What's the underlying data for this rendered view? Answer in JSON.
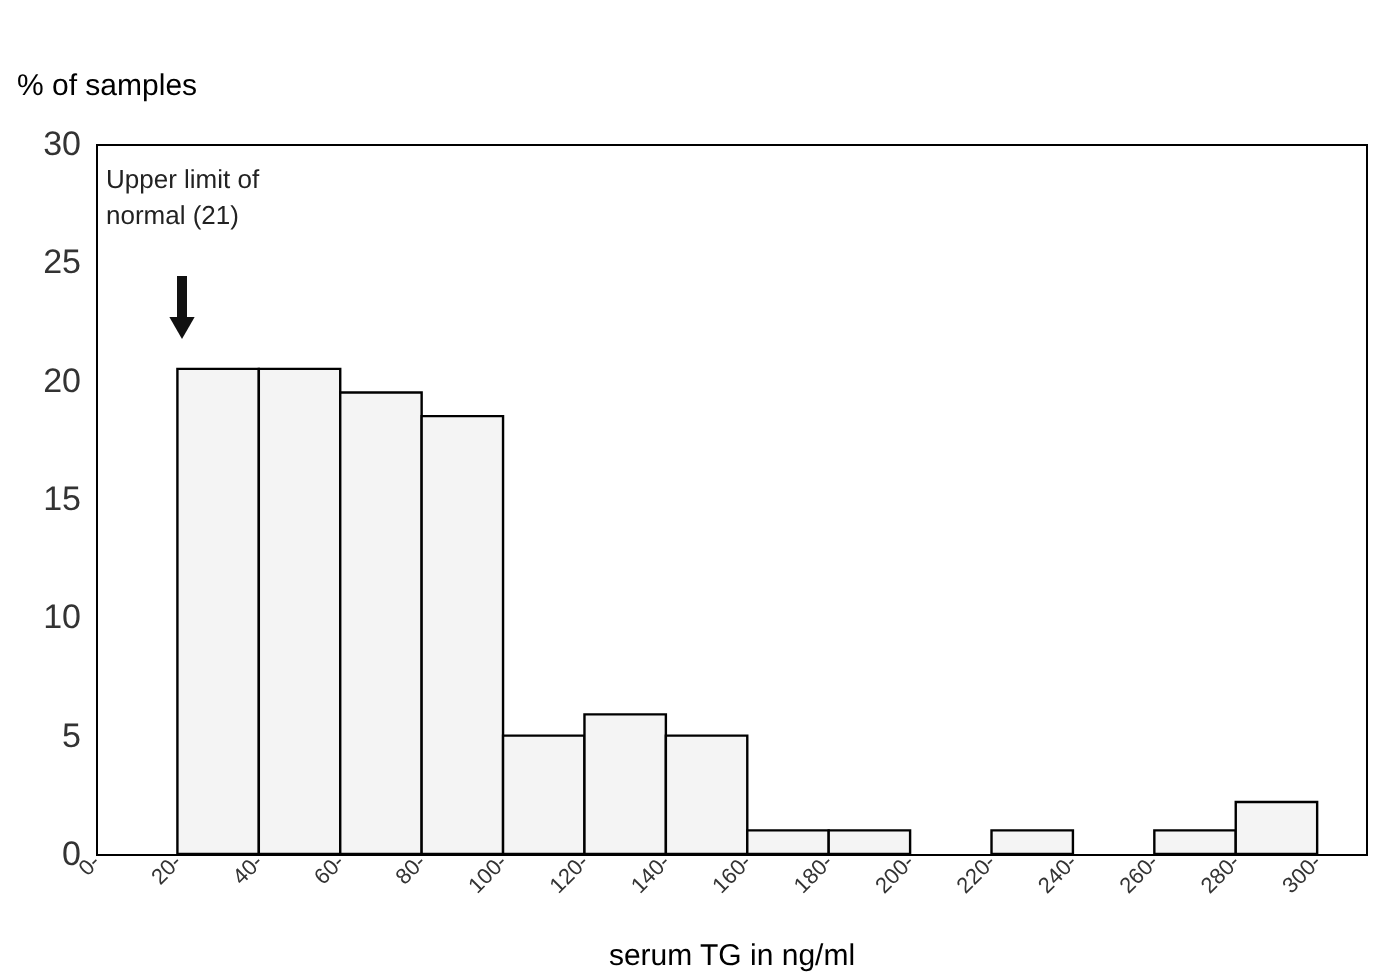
{
  "chart_data": {
    "type": "histogram",
    "xlabel": "serum TG in ng/ml",
    "ylabel": "% of samples",
    "bins": [
      0,
      20,
      40,
      60,
      80,
      100,
      120,
      140,
      160,
      180,
      200,
      220,
      240,
      260,
      280,
      300
    ],
    "values": [
      0,
      20.5,
      20.5,
      19.5,
      18.5,
      5,
      5.9,
      5,
      1,
      1,
      0,
      1,
      0,
      1,
      2.2
    ],
    "color": "#f4f4f4",
    "xlim": [
      0,
      312
    ],
    "xticks": [
      {
        "value": 0,
        "label": "0-"
      },
      {
        "value": 20,
        "label": "20-"
      },
      {
        "value": 40,
        "label": "40-"
      },
      {
        "value": 60,
        "label": "60-"
      },
      {
        "value": 80,
        "label": "80-"
      },
      {
        "value": 100,
        "label": "100-"
      },
      {
        "value": 120,
        "label": "120-"
      },
      {
        "value": 140,
        "label": "140-"
      },
      {
        "value": 160,
        "label": "160-"
      },
      {
        "value": 180,
        "label": "180-"
      },
      {
        "value": 200,
        "label": "200-"
      },
      {
        "value": 220,
        "label": "220-"
      },
      {
        "value": 240,
        "label": "240-"
      },
      {
        "value": 260,
        "label": "260-"
      },
      {
        "value": 280,
        "label": "280-"
      },
      {
        "value": 300,
        "label": "300-"
      }
    ],
    "ylim": [
      0,
      30
    ],
    "yticks": [
      0,
      5,
      10,
      15,
      20,
      25,
      30
    ],
    "grid": false,
    "annotations": [
      "Upper limit of normal (21)"
    ]
  }
}
